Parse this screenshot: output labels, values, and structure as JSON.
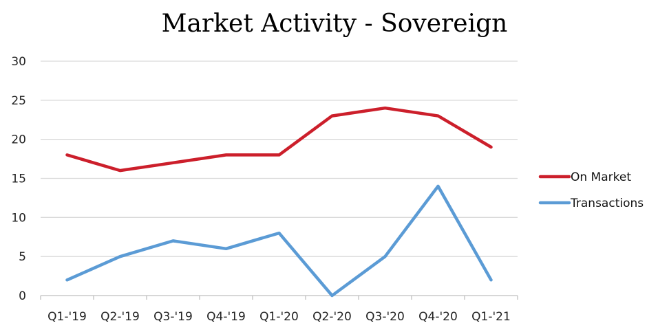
{
  "chart_data": {
    "type": "line",
    "title": "Market Activity - Sovereign",
    "categories": [
      "Q1-'19",
      "Q2-'19",
      "Q3-'19",
      "Q4-'19",
      "Q1-'20",
      "Q2-'20",
      "Q3-'20",
      "Q4-'20",
      "Q1-'21"
    ],
    "series": [
      {
        "name": "On Market",
        "color": "#cc1f2b",
        "values": [
          18,
          16,
          17,
          18,
          18,
          23,
          24,
          23,
          19
        ]
      },
      {
        "name": "Transactions",
        "color": "#5b9bd5",
        "values": [
          2,
          5,
          7,
          6,
          8,
          0,
          5,
          14,
          2
        ]
      }
    ],
    "ylim": [
      0,
      30
    ],
    "yticks": [
      0,
      5,
      10,
      15,
      20,
      25,
      30
    ],
    "grid": true,
    "legend": "right",
    "gridColor": "#d9d9d9"
  }
}
